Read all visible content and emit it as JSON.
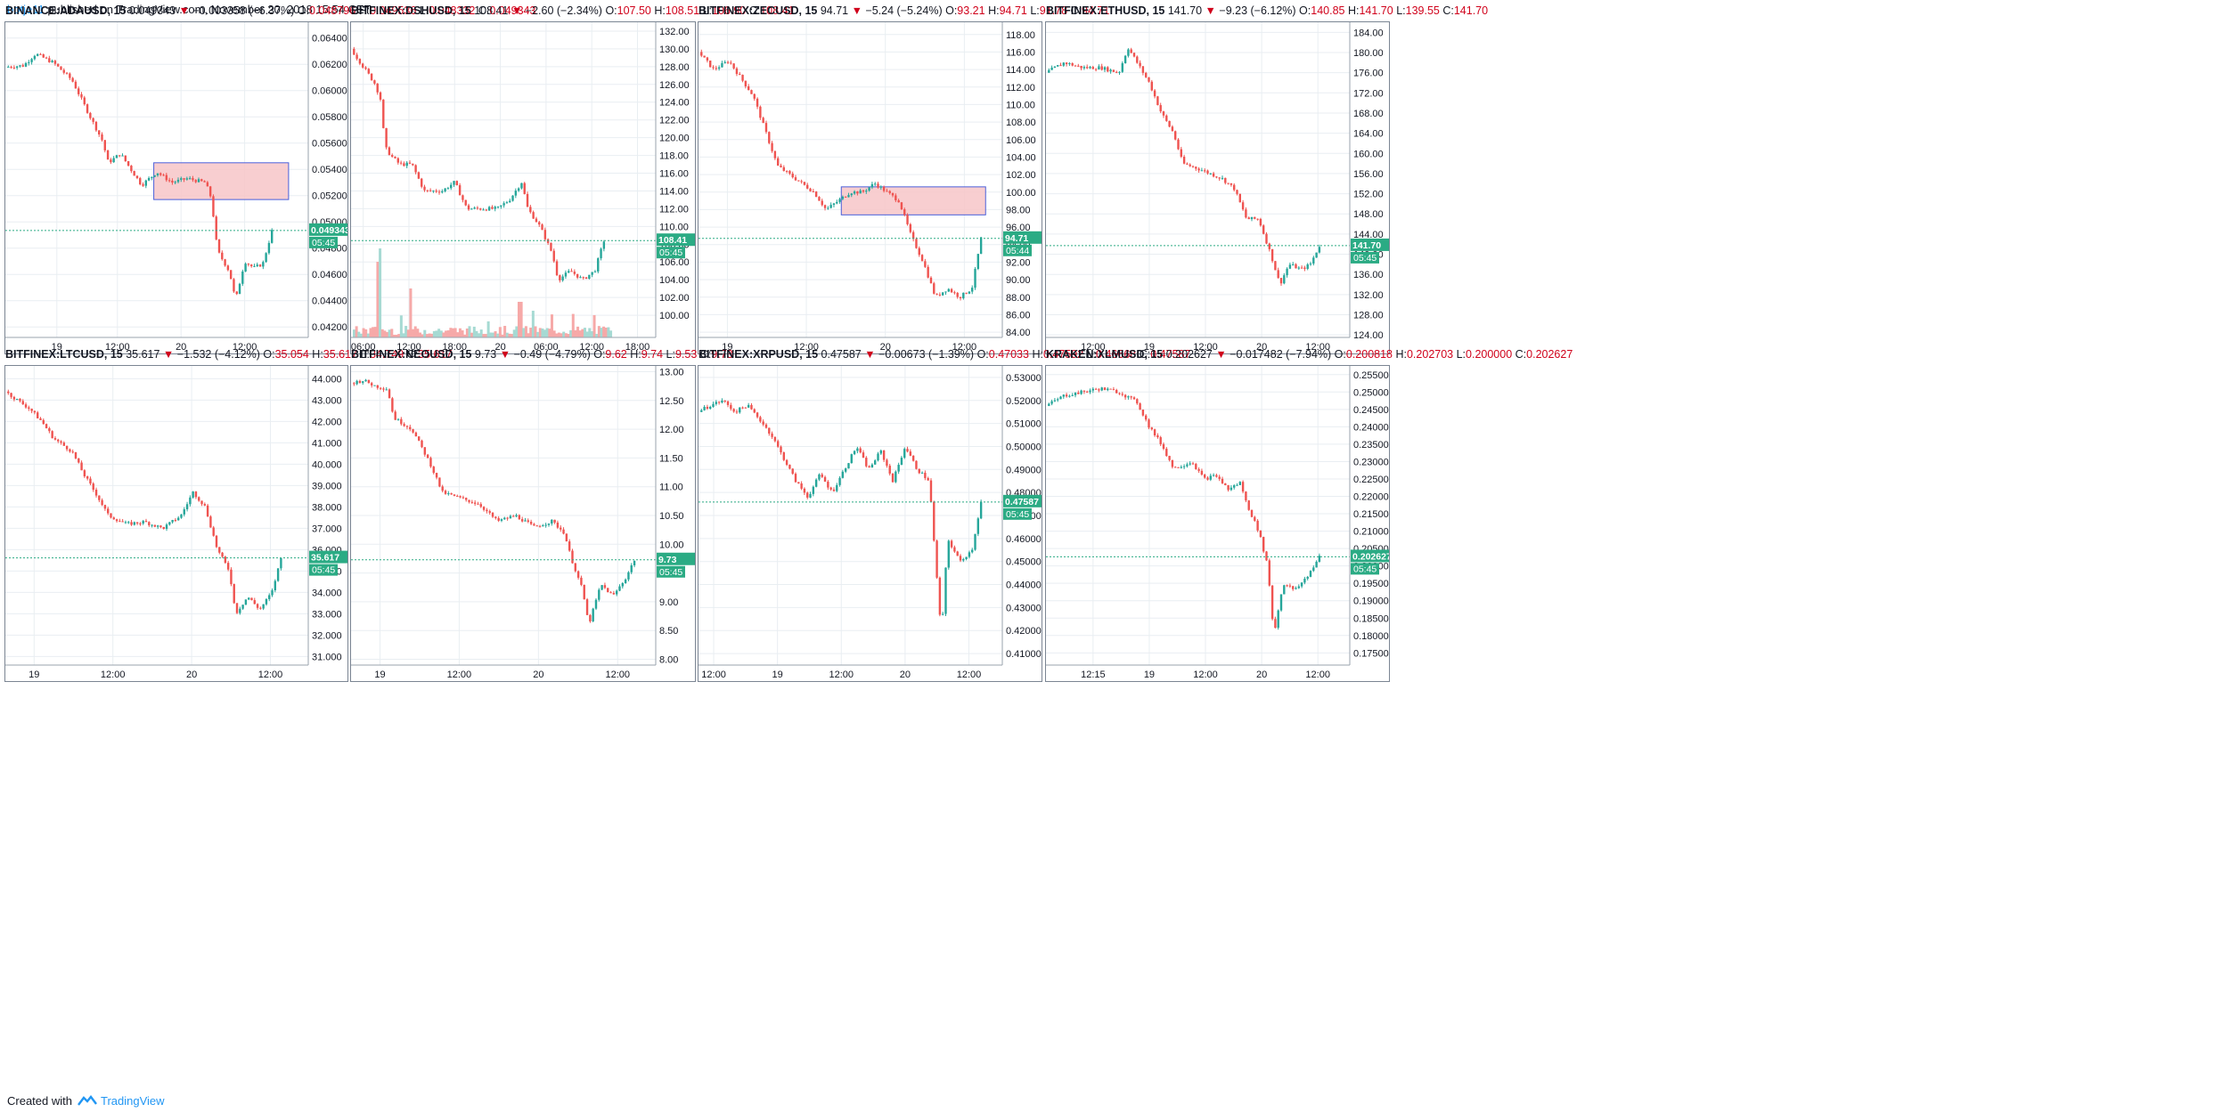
{
  "header": {
    "author": "botje11",
    "published": "published on TradingView.com, November 20, 2018 15:54 CET"
  },
  "footer": {
    "created_with": "Created with",
    "brand": "TradingView"
  },
  "colors": {
    "up": "#26a69a",
    "down": "#ef5350",
    "grid": "#e9eef2",
    "zone_fill": "#f7c6c8",
    "zone_border": "#4a5fd9",
    "price_tag": "#2bab84"
  },
  "chart_data": [
    {
      "type": "candlestick",
      "symbol": "BINANCE:ADAUSD, 15",
      "last": "0.049343",
      "change": "−0.003358 (−6.37%)",
      "O": "0.048796",
      "H": "0.049536",
      "L": "0.048332",
      "C": "0.049343",
      "price_label": "0.049343",
      "countdown": "05:45",
      "ylim": [
        0.0412,
        0.0652
      ],
      "y_ticks": [
        "0.064000",
        "0.062000",
        "0.060000",
        "0.058000",
        "0.056000",
        "0.054000",
        "0.052000",
        "0.050000",
        "0.048000",
        "0.046000",
        "0.044000",
        "0.042000"
      ],
      "y_tick_values": [
        0.064,
        0.062,
        0.06,
        0.058,
        0.056,
        0.054,
        0.052,
        0.05,
        0.048,
        0.046,
        0.044,
        0.042
      ],
      "x_ticks": [
        "19",
        "12:00",
        "20",
        "12:00"
      ],
      "x_tick_pos": [
        0.17,
        0.37,
        0.58,
        0.79
      ],
      "path": [
        [
          0,
          0.0618
        ],
        [
          0.06,
          0.0619
        ],
        [
          0.1,
          0.0628
        ],
        [
          0.16,
          0.0621
        ],
        [
          0.22,
          0.0608
        ],
        [
          0.28,
          0.058
        ],
        [
          0.32,
          0.0562
        ],
        [
          0.34,
          0.0545
        ],
        [
          0.38,
          0.0552
        ],
        [
          0.42,
          0.0538
        ],
        [
          0.45,
          0.0528
        ],
        [
          0.5,
          0.0538
        ],
        [
          0.55,
          0.053
        ],
        [
          0.6,
          0.0533
        ],
        [
          0.66,
          0.053
        ],
        [
          0.68,
          0.0518
        ],
        [
          0.7,
          0.0478
        ],
        [
          0.74,
          0.0462
        ],
        [
          0.76,
          0.044
        ],
        [
          0.79,
          0.047
        ],
        [
          0.82,
          0.0465
        ],
        [
          0.85,
          0.0468
        ],
        [
          0.88,
          0.0493
        ]
      ],
      "zone": {
        "x0": 0.49,
        "x1": 0.935,
        "y0": 0.0517,
        "y1": 0.0545
      }
    },
    {
      "type": "candlestick",
      "symbol": "BITFINEX:DSHUSD, 15",
      "last": "108.41",
      "change": "−2.60 (−2.34%)",
      "O": "107.50",
      "H": "108.51",
      "L": "106.90",
      "C": "108.41",
      "price_label": "108.41",
      "countdown": "05:45",
      "ylim": [
        97.5,
        133
      ],
      "y_ticks": [
        "132.00",
        "130.00",
        "128.00",
        "126.00",
        "124.00",
        "122.00",
        "120.00",
        "118.00",
        "116.00",
        "114.00",
        "112.00",
        "110.00",
        "108.00",
        "106.00",
        "104.00",
        "102.00",
        "100.00"
      ],
      "y_tick_values": [
        132,
        130,
        128,
        126,
        124,
        122,
        120,
        118,
        116,
        114,
        112,
        110,
        108,
        106,
        104,
        102,
        100
      ],
      "x_ticks": [
        "06:00",
        "12:00",
        "18:00",
        "20",
        "06:00",
        "12:00",
        "18:00"
      ],
      "x_tick_pos": [
        0.04,
        0.19,
        0.34,
        0.49,
        0.64,
        0.79,
        0.94
      ],
      "path": [
        [
          0,
          130
        ],
        [
          0.04,
          128
        ],
        [
          0.08,
          126
        ],
        [
          0.1,
          124
        ],
        [
          0.11,
          119
        ],
        [
          0.13,
          118
        ],
        [
          0.16,
          117
        ],
        [
          0.2,
          117
        ],
        [
          0.24,
          114
        ],
        [
          0.3,
          114
        ],
        [
          0.34,
          115
        ],
        [
          0.38,
          112
        ],
        [
          0.44,
          112
        ],
        [
          0.48,
          112
        ],
        [
          0.52,
          113
        ],
        [
          0.56,
          115
        ],
        [
          0.58,
          112
        ],
        [
          0.62,
          110
        ],
        [
          0.66,
          107
        ],
        [
          0.68,
          104
        ],
        [
          0.72,
          105
        ],
        [
          0.76,
          104
        ],
        [
          0.8,
          105
        ],
        [
          0.83,
          108.4
        ]
      ],
      "volume": true
    },
    {
      "type": "candlestick",
      "symbol": "BITFINEX:ZECUSD, 15",
      "last": "94.71",
      "change": "−5.24 (−5.24%)",
      "O": "93.21",
      "H": "94.71",
      "L": "91.78",
      "C": "94.71",
      "price_label": "94.71",
      "countdown": "05:44",
      "ylim": [
        83.4,
        119.4
      ],
      "y_ticks": [
        "118.00",
        "116.00",
        "114.00",
        "112.00",
        "110.00",
        "108.00",
        "106.00",
        "104.00",
        "102.00",
        "100.00",
        "98.00",
        "96.00",
        "94.00",
        "92.00",
        "90.00",
        "88.00",
        "86.00",
        "84.00"
      ],
      "y_tick_values": [
        118,
        116,
        114,
        112,
        110,
        108,
        106,
        104,
        102,
        100,
        98,
        96,
        94,
        92,
        90,
        88,
        86,
        84
      ],
      "x_ticks": [
        "19",
        "12:00",
        "20",
        "12:00"
      ],
      "x_tick_pos": [
        0.095,
        0.355,
        0.615,
        0.875
      ],
      "path": [
        [
          0,
          116
        ],
        [
          0.05,
          114
        ],
        [
          0.1,
          115
        ],
        [
          0.14,
          113
        ],
        [
          0.18,
          111
        ],
        [
          0.22,
          107
        ],
        [
          0.26,
          103
        ],
        [
          0.3,
          102
        ],
        [
          0.34,
          101
        ],
        [
          0.38,
          100
        ],
        [
          0.42,
          98
        ],
        [
          0.46,
          99
        ],
        [
          0.5,
          100
        ],
        [
          0.54,
          100
        ],
        [
          0.58,
          101
        ],
        [
          0.62,
          100
        ],
        [
          0.66,
          99
        ],
        [
          0.7,
          95
        ],
        [
          0.74,
          92
        ],
        [
          0.78,
          88
        ],
        [
          0.82,
          89
        ],
        [
          0.86,
          88
        ],
        [
          0.9,
          89
        ],
        [
          0.93,
          94.7
        ]
      ],
      "zone": {
        "x0": 0.47,
        "x1": 0.945,
        "y0": 97.4,
        "y1": 100.6
      }
    },
    {
      "type": "candlestick",
      "symbol": "BITFINEX:ETHUSD, 15",
      "last": "141.70",
      "change": "−9.23 (−6.12%)",
      "O": "140.85",
      "H": "141.70",
      "L": "139.55",
      "C": "141.70",
      "price_label": "141.70",
      "countdown": "05:45",
      "ylim": [
        123.5,
        186
      ],
      "y_ticks": [
        "184.00",
        "180.00",
        "176.00",
        "172.00",
        "168.00",
        "164.00",
        "160.00",
        "156.00",
        "152.00",
        "148.00",
        "144.00",
        "140.00",
        "136.00",
        "132.00",
        "128.00",
        "124.00"
      ],
      "y_tick_values": [
        184,
        180,
        176,
        172,
        168,
        164,
        160,
        156,
        152,
        148,
        144,
        140,
        136,
        132,
        128,
        124
      ],
      "x_ticks": [
        "12:00",
        "19",
        "12:00",
        "20",
        "12:00"
      ],
      "x_tick_pos": [
        0.155,
        0.34,
        0.525,
        0.71,
        0.895
      ],
      "path": [
        [
          0,
          176
        ],
        [
          0.06,
          178
        ],
        [
          0.12,
          177
        ],
        [
          0.18,
          177
        ],
        [
          0.24,
          176
        ],
        [
          0.27,
          181
        ],
        [
          0.3,
          178
        ],
        [
          0.34,
          174
        ],
        [
          0.38,
          168
        ],
        [
          0.42,
          164
        ],
        [
          0.45,
          158
        ],
        [
          0.5,
          157
        ],
        [
          0.54,
          156
        ],
        [
          0.58,
          155
        ],
        [
          0.62,
          153
        ],
        [
          0.66,
          147
        ],
        [
          0.7,
          147
        ],
        [
          0.74,
          140
        ],
        [
          0.77,
          134
        ],
        [
          0.8,
          138
        ],
        [
          0.84,
          137
        ],
        [
          0.87,
          138
        ],
        [
          0.9,
          141.7
        ]
      ]
    },
    {
      "type": "candlestick",
      "symbol": "BITFINEX:LTCUSD, 15",
      "last": "35.617",
      "change": "−1.532 (−4.12%)",
      "O": "35.054",
      "H": "35.617",
      "L": "34.749",
      "C": "35.617",
      "price_label": "35.617",
      "countdown": "05:45",
      "ylim": [
        30.6,
        44.6
      ],
      "y_ticks": [
        "44.000",
        "43.000",
        "42.000",
        "41.000",
        "40.000",
        "39.000",
        "38.000",
        "37.000",
        "36.000",
        "35.000",
        "34.000",
        "33.000",
        "32.000",
        "31.000"
      ],
      "y_tick_values": [
        44,
        43,
        42,
        41,
        40,
        39,
        38,
        37,
        36,
        35,
        34,
        33,
        32,
        31
      ],
      "x_ticks": [
        "19",
        "12:00",
        "20",
        "12:00"
      ],
      "x_tick_pos": [
        0.095,
        0.355,
        0.615,
        0.875
      ],
      "path": [
        [
          0,
          43.4
        ],
        [
          0.04,
          43.0
        ],
        [
          0.08,
          42.6
        ],
        [
          0.12,
          42.0
        ],
        [
          0.16,
          41.2
        ],
        [
          0.22,
          40.6
        ],
        [
          0.26,
          39.5
        ],
        [
          0.3,
          38.6
        ],
        [
          0.34,
          37.6
        ],
        [
          0.4,
          37.2
        ],
        [
          0.46,
          37.3
        ],
        [
          0.52,
          37.0
        ],
        [
          0.58,
          37.6
        ],
        [
          0.62,
          38.7
        ],
        [
          0.66,
          38.0
        ],
        [
          0.7,
          36.0
        ],
        [
          0.74,
          35.0
        ],
        [
          0.76,
          33.0
        ],
        [
          0.8,
          33.8
        ],
        [
          0.84,
          33.2
        ],
        [
          0.88,
          34.0
        ],
        [
          0.91,
          35.6
        ]
      ]
    },
    {
      "type": "candlestick",
      "symbol": "BITFINEX:NEOUSD, 15",
      "last": "9.73",
      "change": "−0.49 (−4.79%)",
      "O": "9.62",
      "H": "9.74",
      "L": "9.53",
      "C": "9.73",
      "price_label": "9.73",
      "countdown": "05:45",
      "ylim": [
        7.9,
        13.1
      ],
      "y_ticks": [
        "13.00",
        "12.50",
        "12.00",
        "11.50",
        "11.00",
        "10.50",
        "10.00",
        "9.50",
        "9.00",
        "8.50",
        "8.00"
      ],
      "y_tick_values": [
        13,
        12.5,
        12,
        11.5,
        11,
        10.5,
        10,
        9.5,
        9,
        8.5,
        8
      ],
      "x_ticks": [
        "19",
        "12:00",
        "20",
        "12:00"
      ],
      "x_tick_pos": [
        0.095,
        0.355,
        0.615,
        0.875
      ],
      "path": [
        [
          0,
          12.8
        ],
        [
          0.04,
          12.85
        ],
        [
          0.08,
          12.75
        ],
        [
          0.12,
          12.7
        ],
        [
          0.14,
          12.2
        ],
        [
          0.2,
          12.0
        ],
        [
          0.26,
          11.4
        ],
        [
          0.3,
          10.9
        ],
        [
          0.36,
          10.8
        ],
        [
          0.42,
          10.7
        ],
        [
          0.48,
          10.4
        ],
        [
          0.54,
          10.5
        ],
        [
          0.6,
          10.3
        ],
        [
          0.66,
          10.4
        ],
        [
          0.7,
          10.2
        ],
        [
          0.72,
          9.8
        ],
        [
          0.76,
          9.2
        ],
        [
          0.78,
          8.6
        ],
        [
          0.82,
          9.3
        ],
        [
          0.86,
          9.1
        ],
        [
          0.9,
          9.4
        ],
        [
          0.93,
          9.73
        ]
      ]
    },
    {
      "type": "candlestick",
      "symbol": "BITFINEX:XRPUSD, 15",
      "last": "0.47587",
      "change": "−0.00673 (−1.39%)",
      "O": "0.47033",
      "H": "0.47592",
      "L": "0.46668",
      "C": "0.47587",
      "price_label": "0.47587",
      "countdown": "05:45",
      "ylim": [
        0.405,
        0.535
      ],
      "y_ticks": [
        "0.53000",
        "0.52000",
        "0.51000",
        "0.50000",
        "0.49000",
        "0.48000",
        "0.47000",
        "0.46000",
        "0.45000",
        "0.44000",
        "0.43000",
        "0.42000",
        "0.41000"
      ],
      "y_tick_values": [
        0.53,
        0.52,
        0.51,
        0.5,
        0.49,
        0.48,
        0.47,
        0.46,
        0.45,
        0.44,
        0.43,
        0.42,
        0.41
      ],
      "x_ticks": [
        "12:00",
        "19",
        "12:00",
        "20",
        "12:00"
      ],
      "x_tick_pos": [
        0.05,
        0.26,
        0.47,
        0.68,
        0.89
      ],
      "path": [
        [
          0,
          0.515
        ],
        [
          0.04,
          0.518
        ],
        [
          0.08,
          0.52
        ],
        [
          0.12,
          0.515
        ],
        [
          0.16,
          0.518
        ],
        [
          0.2,
          0.512
        ],
        [
          0.24,
          0.505
        ],
        [
          0.28,
          0.495
        ],
        [
          0.32,
          0.485
        ],
        [
          0.36,
          0.478
        ],
        [
          0.4,
          0.488
        ],
        [
          0.44,
          0.48
        ],
        [
          0.48,
          0.49
        ],
        [
          0.52,
          0.5
        ],
        [
          0.56,
          0.49
        ],
        [
          0.6,
          0.498
        ],
        [
          0.64,
          0.485
        ],
        [
          0.68,
          0.5
        ],
        [
          0.72,
          0.49
        ],
        [
          0.76,
          0.485
        ],
        [
          0.78,
          0.45
        ],
        [
          0.8,
          0.418
        ],
        [
          0.82,
          0.46
        ],
        [
          0.86,
          0.45
        ],
        [
          0.9,
          0.455
        ],
        [
          0.93,
          0.4759
        ]
      ]
    },
    {
      "type": "candlestick",
      "symbol": "KRAKEN:XLMUSD, 15",
      "last": "0.202627",
      "change": "−0.017482 (−7.94%)",
      "O": "0.200818",
      "H": "0.202703",
      "L": "0.200000",
      "C": "0.202627",
      "price_label": "0.202627",
      "countdown": "05:45",
      "ylim": [
        0.1715,
        0.2575
      ],
      "y_ticks": [
        "0.255000",
        "0.250000",
        "0.245000",
        "0.240000",
        "0.235000",
        "0.230000",
        "0.225000",
        "0.220000",
        "0.215000",
        "0.210000",
        "0.205000",
        "0.200000",
        "0.195000",
        "0.190000",
        "0.185000",
        "0.180000",
        "0.175000"
      ],
      "y_tick_values": [
        0.255,
        0.25,
        0.245,
        0.24,
        0.235,
        0.23,
        0.225,
        0.22,
        0.215,
        0.21,
        0.205,
        0.2,
        0.195,
        0.19,
        0.185,
        0.18,
        0.175
      ],
      "x_ticks": [
        "12:15",
        "19",
        "12:00",
        "20",
        "12:00"
      ],
      "x_tick_pos": [
        0.155,
        0.34,
        0.525,
        0.71,
        0.895
      ],
      "path": [
        [
          0,
          0.246
        ],
        [
          0.06,
          0.249
        ],
        [
          0.12,
          0.25
        ],
        [
          0.18,
          0.251
        ],
        [
          0.24,
          0.25
        ],
        [
          0.3,
          0.247
        ],
        [
          0.34,
          0.24
        ],
        [
          0.38,
          0.235
        ],
        [
          0.42,
          0.228
        ],
        [
          0.48,
          0.23
        ],
        [
          0.52,
          0.225
        ],
        [
          0.56,
          0.226
        ],
        [
          0.6,
          0.222
        ],
        [
          0.64,
          0.224
        ],
        [
          0.66,
          0.218
        ],
        [
          0.7,
          0.21
        ],
        [
          0.73,
          0.2
        ],
        [
          0.75,
          0.18
        ],
        [
          0.78,
          0.195
        ],
        [
          0.82,
          0.193
        ],
        [
          0.86,
          0.197
        ],
        [
          0.9,
          0.2026
        ]
      ]
    }
  ]
}
